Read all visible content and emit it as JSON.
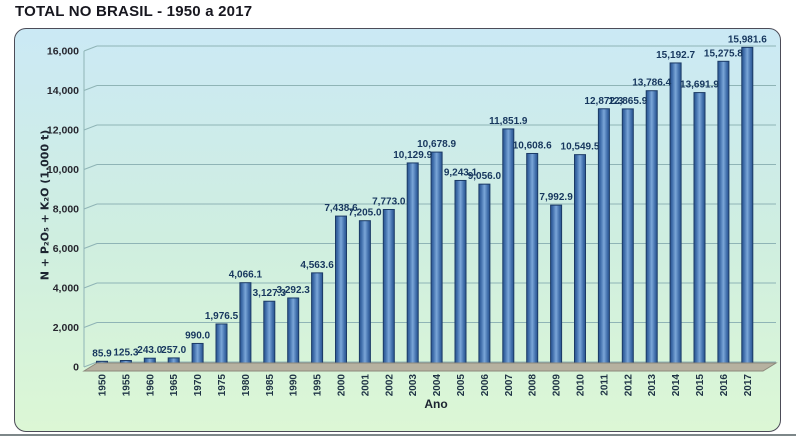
{
  "header": {
    "title": "TOTAL NO BRASIL - 1950 a 2017"
  },
  "colors": {
    "background_top": "#cbe9f5",
    "background_mid": "#cfeee0",
    "background_bottom": "#dcf7d5",
    "bar_fill_center": "#7aa6d8",
    "bar_fill_edge": "#2b5590",
    "bar_outline": "#1b3a66",
    "gridline": "#8fb4b6",
    "floor": "#b6b1a0",
    "floor_edge": "#8d897c",
    "value_label": "#17375e",
    "tick_label": "#26262e",
    "year_label": "#1f3345"
  },
  "chart_data": {
    "type": "bar",
    "title": "TOTAL NO BRASIL - 1950 a 2017",
    "xlabel": "Ano",
    "ylabel": "N + P₂O₅ + K₂O (1.000 t)",
    "ylim": [
      0,
      16000
    ],
    "ytick_step": 2000,
    "ytick_labels": [
      "0",
      "2,000",
      "4,000",
      "6,000",
      "8,000",
      "10,000",
      "12,000",
      "14,000",
      "16,000"
    ],
    "grid": true,
    "legend": "none",
    "style": "3d-perspective",
    "categories": [
      "1950",
      "1955",
      "1960",
      "1965",
      "1970",
      "1975",
      "1980",
      "1985",
      "1990",
      "1995",
      "2000",
      "2001",
      "2002",
      "2003",
      "2004",
      "2005",
      "2006",
      "2007",
      "2008",
      "2009",
      "2010",
      "2011",
      "2012",
      "2013",
      "2014",
      "2015",
      "2016",
      "2017"
    ],
    "values": [
      85.9,
      125.3,
      243.0,
      257.0,
      990.0,
      1976.5,
      4066.1,
      3127.3,
      3292.3,
      4563.6,
      7438.6,
      7205.0,
      7773.0,
      10129.9,
      10678.9,
      9243.1,
      9056.0,
      11851.9,
      10608.6,
      7992.9,
      10549.5,
      12872.3,
      12865.9,
      13786.4,
      15192.7,
      13691.9,
      15275.8,
      15981.6
    ],
    "value_labels": [
      "85.9",
      "125.3",
      "243.0",
      "257.0",
      "990.0",
      "1,976.5",
      "4,066.1",
      "3,127.3",
      "3,292.3",
      "4,563.6",
      "7,438.6",
      "7,205.0",
      "7,773.0",
      "10,129.9",
      "10,678.9",
      "9,243.1",
      "9,056.0",
      "11,851.9",
      "10,608.6",
      "7,992.9",
      "10,549.5",
      "12,872.3",
      "12,865.9",
      "13,786.4",
      "15,192.7",
      "13,691.9",
      "15,275.8",
      "15,981.6"
    ]
  }
}
